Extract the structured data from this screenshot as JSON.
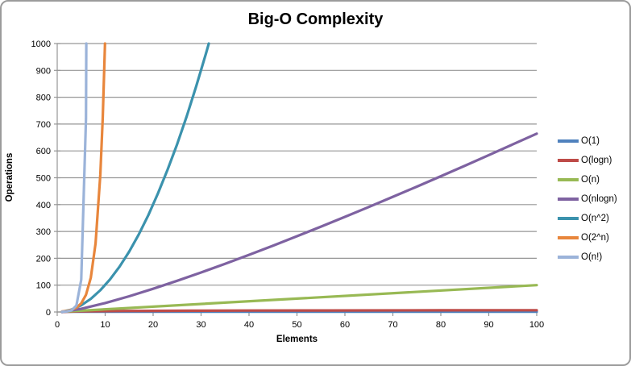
{
  "colors": {
    "background": "#ffffff",
    "frame_border": "#9c9c9c",
    "grid": "#969696",
    "axis": "#969696",
    "text": "#000000"
  },
  "chart_data": {
    "type": "line",
    "title": "Big-O Complexity",
    "xlabel": "Elements",
    "ylabel": "Operations",
    "xlim": [
      0,
      100
    ],
    "ylim": [
      0,
      1000
    ],
    "x_ticks": [
      0,
      10,
      20,
      30,
      40,
      50,
      60,
      70,
      80,
      90,
      100
    ],
    "y_ticks": [
      0,
      100,
      200,
      300,
      400,
      500,
      600,
      700,
      800,
      900,
      1000
    ],
    "grid": "horizontal-major",
    "legend_position": "right",
    "series": [
      {
        "name": "O(1)",
        "color": "#4F81BD",
        "points": [
          [
            1,
            1
          ],
          [
            100,
            1
          ]
        ]
      },
      {
        "name": "O(logn)",
        "color": "#BE4B48",
        "points": [
          [
            1,
            0
          ],
          [
            2,
            1
          ],
          [
            3,
            1.58
          ],
          [
            4,
            2
          ],
          [
            5,
            2.32
          ],
          [
            6,
            2.58
          ],
          [
            8,
            3
          ],
          [
            10,
            3.32
          ],
          [
            14,
            3.81
          ],
          [
            20,
            4.32
          ],
          [
            28,
            4.81
          ],
          [
            40,
            5.32
          ],
          [
            56,
            5.81
          ],
          [
            80,
            6.32
          ],
          [
            100,
            6.64
          ]
        ]
      },
      {
        "name": "O(n)",
        "color": "#98B954",
        "points": [
          [
            1,
            1
          ],
          [
            100,
            100
          ]
        ]
      },
      {
        "name": "O(nlogn)",
        "color": "#7E62A1",
        "points": [
          [
            1,
            0
          ],
          [
            5,
            11.6
          ],
          [
            10,
            33.2
          ],
          [
            15,
            58.6
          ],
          [
            20,
            86.4
          ],
          [
            25,
            116.1
          ],
          [
            30,
            147.2
          ],
          [
            35,
            179.5
          ],
          [
            40,
            212.9
          ],
          [
            45,
            247.2
          ],
          [
            50,
            282.2
          ],
          [
            55,
            317.9
          ],
          [
            60,
            354.4
          ],
          [
            65,
            391.3
          ],
          [
            70,
            429.0
          ],
          [
            75,
            467.1
          ],
          [
            80,
            505.8
          ],
          [
            85,
            544.8
          ],
          [
            90,
            584.3
          ],
          [
            95,
            624.2
          ],
          [
            100,
            664.4
          ]
        ]
      },
      {
        "name": "O(n^2)",
        "color": "#3B92AD",
        "points": [
          [
            1,
            1
          ],
          [
            3,
            9
          ],
          [
            5,
            25
          ],
          [
            7,
            49
          ],
          [
            9,
            81
          ],
          [
            11,
            121
          ],
          [
            13,
            169
          ],
          [
            15,
            225
          ],
          [
            17,
            289
          ],
          [
            19,
            361
          ],
          [
            21,
            441
          ],
          [
            23,
            529
          ],
          [
            25,
            625
          ],
          [
            27,
            729
          ],
          [
            29,
            841
          ],
          [
            31,
            961
          ],
          [
            31.62,
            1000
          ]
        ]
      },
      {
        "name": "O(2^n)",
        "color": "#E8863C",
        "points": [
          [
            1,
            2
          ],
          [
            2,
            4
          ],
          [
            3,
            8
          ],
          [
            4,
            16
          ],
          [
            5,
            32
          ],
          [
            6,
            64
          ],
          [
            7,
            128
          ],
          [
            8,
            256
          ],
          [
            9,
            512
          ],
          [
            9.5,
            724
          ],
          [
            9.97,
            1000
          ]
        ]
      },
      {
        "name": "O(n!)",
        "color": "#9BB3D9",
        "points": [
          [
            1,
            1
          ],
          [
            2,
            2
          ],
          [
            3,
            6
          ],
          [
            4,
            24
          ],
          [
            5,
            120
          ],
          [
            6,
            720
          ],
          [
            6.07,
            1000
          ]
        ]
      }
    ]
  }
}
